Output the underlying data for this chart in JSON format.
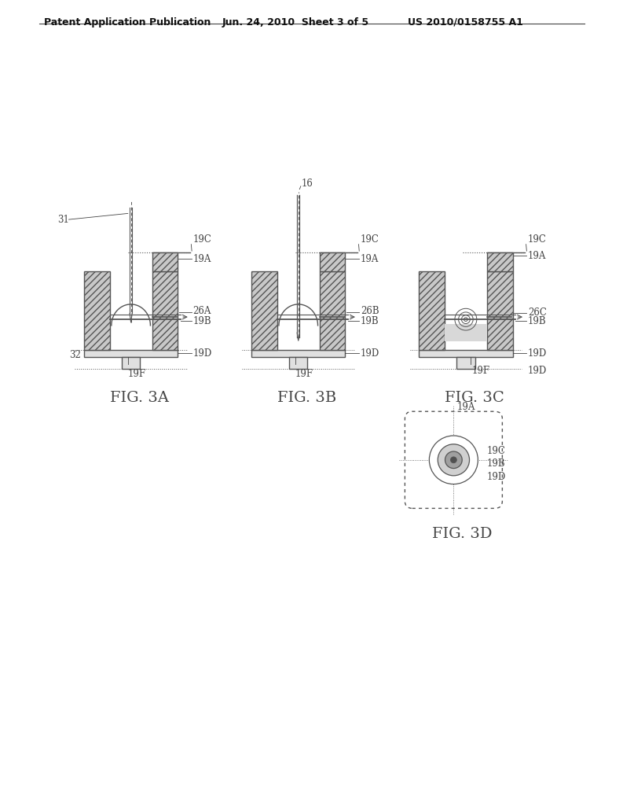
{
  "bg_color": "#ffffff",
  "header_text": "Patent Application Publication",
  "header_date": "Jun. 24, 2010  Sheet 3 of 5",
  "header_patent": "US 2010/0158755 A1",
  "line_color": "#555555",
  "text_color": "#444444",
  "hatch_pattern": "////",
  "hatch_fc": "#c8c8c8",
  "fig_label_fontsize": 14,
  "annot_fontsize": 8.5,
  "header_fontsize": 9
}
